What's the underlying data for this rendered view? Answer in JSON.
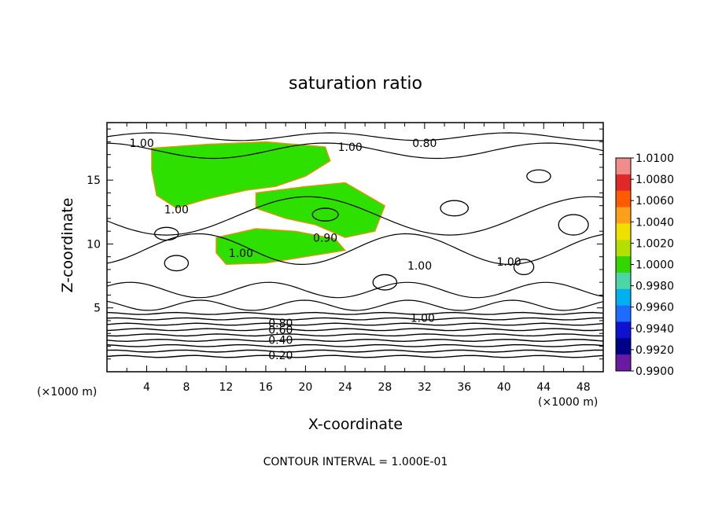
{
  "chart_data": {
    "type": "contour",
    "title": "saturation ratio",
    "xlabel": "X-coordinate",
    "ylabel": "Z-coordinate",
    "x_unit_label_left": "(×1000 m)",
    "x_unit_label_right": "(×1000 m)",
    "xlim": [
      0,
      50
    ],
    "ylim": [
      0,
      19.5
    ],
    "x_ticks": [
      4,
      8,
      12,
      16,
      20,
      24,
      28,
      32,
      36,
      40,
      44,
      48
    ],
    "y_ticks": [
      5,
      10,
      15
    ],
    "footer": "CONTOUR INTERVAL = 1.000E-01",
    "colorbar": {
      "labels": [
        "1.0100",
        "1.0080",
        "1.0060",
        "1.0040",
        "1.0020",
        "1.0000",
        "0.9980",
        "0.9960",
        "0.9940",
        "0.9920",
        "0.9900"
      ],
      "colors": [
        "#f08c8c",
        "#e02828",
        "#ff5a00",
        "#ff9f1a",
        "#f0e000",
        "#b4e000",
        "#33d600",
        "#4cd6a8",
        "#00b0f0",
        "#1e6cff",
        "#1010d0",
        "#000088",
        "#6a1aa0"
      ]
    },
    "contour_labels": [
      {
        "text": "1.00",
        "x": 3.5,
        "y": 17.9
      },
      {
        "text": "1.00",
        "x": 24.5,
        "y": 17.6
      },
      {
        "text": "0.80",
        "x": 32.0,
        "y": 17.9
      },
      {
        "text": "1.00",
        "x": 7.0,
        "y": 12.7
      },
      {
        "text": "1.00",
        "x": 13.5,
        "y": 9.3
      },
      {
        "text": "0.90",
        "x": 22.0,
        "y": 10.5
      },
      {
        "text": "1.00",
        "x": 31.5,
        "y": 8.3
      },
      {
        "text": "1.00",
        "x": 40.5,
        "y": 8.6
      },
      {
        "text": "1.00",
        "x": 31.8,
        "y": 4.2
      },
      {
        "text": "0.80",
        "x": 17.5,
        "y": 3.8
      },
      {
        "text": "0.60",
        "x": 17.5,
        "y": 3.3
      },
      {
        "text": "0.40",
        "x": 17.5,
        "y": 2.5
      },
      {
        "text": "0.20",
        "x": 17.5,
        "y": 1.3
      }
    ],
    "green_regions": [
      [
        [
          4.5,
          17.5
        ],
        [
          10,
          17.8
        ],
        [
          16,
          18.0
        ],
        [
          22,
          17.6
        ],
        [
          22.5,
          16.5
        ],
        [
          20,
          15.3
        ],
        [
          17,
          14.5
        ],
        [
          14,
          14.2
        ],
        [
          10,
          13.5
        ],
        [
          7,
          12.8
        ],
        [
          5,
          13.8
        ],
        [
          4.5,
          15.8
        ]
      ],
      [
        [
          15,
          14.0
        ],
        [
          20,
          14.5
        ],
        [
          24,
          14.8
        ],
        [
          28,
          13.0
        ],
        [
          27,
          11.0
        ],
        [
          24,
          10.5
        ],
        [
          21,
          11.5
        ],
        [
          18,
          12.0
        ],
        [
          15,
          12.8
        ]
      ],
      [
        [
          11,
          10.5
        ],
        [
          15,
          11.2
        ],
        [
          19,
          11.0
        ],
        [
          23,
          10.4
        ],
        [
          24,
          9.5
        ],
        [
          20,
          9.0
        ],
        [
          16,
          8.5
        ],
        [
          12,
          8.4
        ],
        [
          11,
          9.3
        ]
      ]
    ]
  }
}
